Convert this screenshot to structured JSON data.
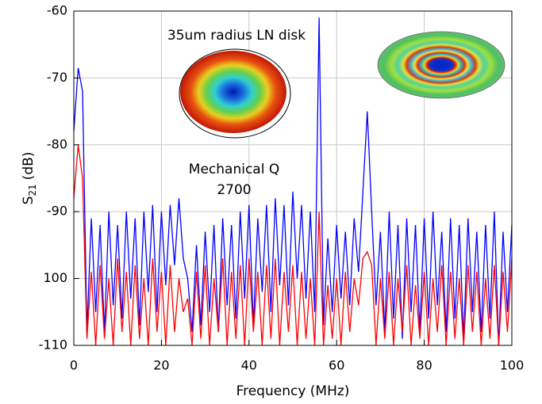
{
  "chart_data": {
    "type": "line",
    "y_label_symbol": "S",
    "y_label_subscript": "21",
    "y_label_unit": "(dB)",
    "x_label": "Frequency (MHz)",
    "annotations": [
      "35um radius LN disk",
      "Mechanical Q",
      "2700"
    ],
    "xlim": [
      0,
      100
    ],
    "xticks": [
      0,
      20,
      40,
      60,
      80,
      100
    ],
    "ylim": [
      -110,
      -60
    ],
    "yticks": [
      -60,
      -70,
      -80,
      -90,
      {
        "value": -100,
        "label": "100"
      },
      -110
    ],
    "grid": true,
    "x": [
      0,
      1,
      2,
      3,
      4,
      5,
      6,
      7,
      8,
      9,
      10,
      11,
      12,
      13,
      14,
      15,
      16,
      17,
      18,
      19,
      20,
      21,
      22,
      23,
      24,
      25,
      26,
      27,
      28,
      29,
      30,
      31,
      32,
      33,
      34,
      35,
      36,
      37,
      38,
      39,
      40,
      41,
      42,
      43,
      44,
      45,
      46,
      47,
      48,
      49,
      50,
      51,
      52,
      53,
      54,
      55,
      56,
      57,
      58,
      59,
      60,
      61,
      62,
      63,
      64,
      65,
      66,
      67,
      68,
      69,
      70,
      71,
      72,
      73,
      74,
      75,
      76,
      77,
      78,
      79,
      80,
      81,
      82,
      83,
      84,
      85,
      86,
      87,
      88,
      89,
      90,
      91,
      92,
      93,
      94,
      95,
      96,
      97,
      98,
      99,
      100
    ],
    "series": [
      {
        "color": "#0000ff",
        "values": [
          -78,
          -68.5,
          -72,
          -108,
          -91,
          -105,
          -92,
          -108,
          -90,
          -104,
          -92,
          -106,
          -90,
          -103,
          -91,
          -107,
          -90,
          -102,
          -89,
          -105,
          -90,
          -101,
          -89,
          -98,
          -88,
          -97,
          -100,
          -108,
          -95,
          -107,
          -93,
          -105,
          -92,
          -108,
          -91,
          -104,
          -92,
          -106,
          -90,
          -103,
          -89,
          -107,
          -91,
          -102,
          -89,
          -105,
          -88,
          -101,
          -89,
          -104,
          -87,
          -100,
          -89,
          -103,
          -90,
          -105,
          -61,
          -107,
          -94,
          -105,
          -92,
          -103,
          -93,
          -104,
          -91,
          -99,
          -87,
          -75,
          -90,
          -104,
          -93,
          -108,
          -90,
          -106,
          -92,
          -109,
          -91,
          -105,
          -92,
          -108,
          -91,
          -106,
          -90,
          -104,
          -93,
          -108,
          -91,
          -106,
          -92,
          -109,
          -91,
          -105,
          -93,
          -108,
          -92,
          -106,
          -90,
          -110,
          -93,
          -105,
          -92
        ]
      },
      {
        "color": "#ff0000",
        "values": [
          -88,
          -80,
          -85,
          -109,
          -99,
          -110,
          -98,
          -109,
          -100,
          -110,
          -97,
          -108,
          -99,
          -110,
          -98,
          -109,
          -100,
          -110,
          -97,
          -108,
          -99,
          -110,
          -98,
          -108,
          -100,
          -105,
          -103,
          -110,
          -99,
          -109,
          -98,
          -110,
          -100,
          -108,
          -97,
          -110,
          -99,
          -109,
          -98,
          -110,
          -97,
          -108,
          -99,
          -110,
          -98,
          -109,
          -97,
          -110,
          -99,
          -108,
          -98,
          -110,
          -99,
          -109,
          -100,
          -110,
          -90,
          -110,
          -101,
          -109,
          -100,
          -110,
          -99,
          -108,
          -100,
          -104,
          -97,
          -96,
          -98,
          -110,
          -100,
          -109,
          -99,
          -110,
          -100,
          -108,
          -98,
          -110,
          -101,
          -109,
          -99,
          -110,
          -100,
          -108,
          -98,
          -110,
          -99,
          -109,
          -100,
          -110,
          -98,
          -108,
          -99,
          -110,
          -100,
          -109,
          -98,
          -110,
          -99,
          -108,
          -97
        ]
      }
    ]
  }
}
